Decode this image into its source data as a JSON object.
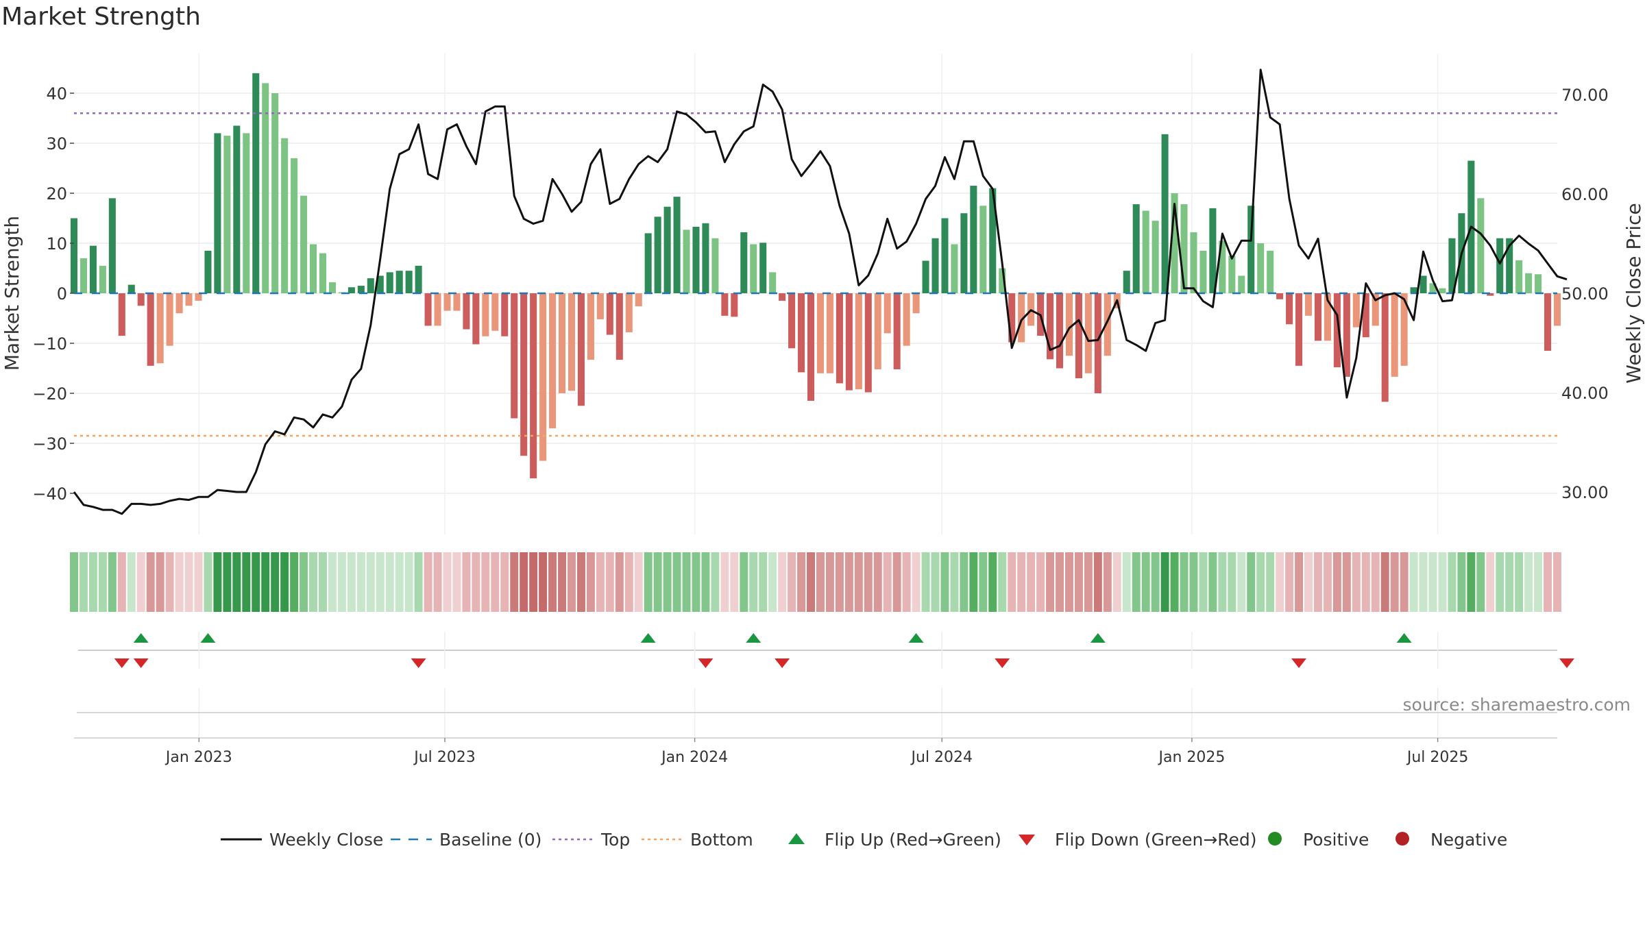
{
  "title": "Market Strength",
  "source": "source: sharemaestro.com",
  "colors": {
    "price_line": "#111111",
    "baseline": "#1f77b4",
    "top_line": "#9467bd",
    "bottom_line": "#f4a261",
    "pos_strong": "#2e8b57",
    "pos_weak": "#7dc383",
    "neg_strong": "#cd5c5c",
    "neg_weak": "#e9967a",
    "flip_up": "#1a9641",
    "flip_down": "#d62728",
    "positive_dot": "#228b22",
    "negative_dot": "#b22222"
  },
  "legend": [
    {
      "label": "Weekly Close",
      "icon": "line-icon"
    },
    {
      "label": "Baseline (0)",
      "icon": "dash-icon"
    },
    {
      "label": "Top",
      "icon": "dotted-line-icon"
    },
    {
      "label": "Bottom",
      "icon": "dotted-line-icon"
    },
    {
      "label": "Flip Up (Red→Green)",
      "icon": "triangle-up-icon"
    },
    {
      "label": "Flip Down (Green→Red)",
      "icon": "triangle-down-icon"
    },
    {
      "label": "Positive",
      "icon": "circle-icon"
    },
    {
      "label": "Negative",
      "icon": "circle-icon"
    }
  ],
  "chart_data": {
    "type": "bar+line",
    "title": "Market Strength",
    "ylabel_left": "Market Strength",
    "ylabel_right": "Weekly Close Price",
    "ylim_left": [
      -48,
      48
    ],
    "ylim_right": [
      26.0,
      74.0
    ],
    "yticks_left": [
      "40",
      "30",
      "20",
      "10",
      "0",
      "−10",
      "−20",
      "−30",
      "−40"
    ],
    "yticks_left_values": [
      40,
      30,
      20,
      10,
      0,
      -10,
      -20,
      -30,
      -40
    ],
    "yticks_right": [
      "70.00",
      "60.00",
      "50.00",
      "40.00",
      "30.00"
    ],
    "yticks_right_values": [
      70,
      60,
      50,
      40,
      30
    ],
    "x_start": "2022-10-01",
    "x_end": "2025-09-27",
    "xtick_labels": [
      "Jan 2023",
      "Jul 2023",
      "Jan 2024",
      "Jul 2024",
      "Jan 2025",
      "Jul 2025"
    ],
    "xtick_dates": [
      "2023-01-01",
      "2023-07-01",
      "2024-01-01",
      "2024-07-01",
      "2025-01-01",
      "2025-07-01"
    ],
    "top_level": 36,
    "bottom_level": -28.5,
    "baseline": 0,
    "strength": [
      15,
      7,
      9.5,
      5.5,
      19,
      -8.5,
      1.7,
      -2.5,
      -14.5,
      -14,
      -10.5,
      -4,
      -2.5,
      -1.5,
      8.5,
      32,
      31.5,
      33.5,
      32,
      44,
      42,
      40,
      31,
      27,
      19.5,
      9.8,
      8,
      2.2,
      0.2,
      1.2,
      1.5,
      3,
      3.5,
      4.2,
      4.5,
      4.5,
      5.5,
      -6.5,
      -6.5,
      -3.5,
      -3.5,
      -7.2,
      -10.2,
      -8.6,
      -7.5,
      -8.6,
      -25,
      -32.5,
      -37,
      -33.5,
      -27,
      -20,
      -19.5,
      -22.5,
      -13.3,
      -5.2,
      -8.3,
      -13.3,
      -7.8,
      -2.6,
      12,
      15.3,
      17.3,
      19.3,
      12.7,
      13.3,
      14,
      11,
      -4.5,
      -4.7,
      12.2,
      9.8,
      10.1,
      4.2,
      -1.5,
      -11,
      -15.8,
      -21.5,
      -16,
      -16,
      -18,
      -19.4,
      -19.2,
      -19.8,
      -15.2,
      -8,
      -15.2,
      -10.5,
      -4,
      6.5,
      11,
      15,
      9.8,
      16,
      21.5,
      17.5,
      21,
      5,
      -9.8,
      -9.8,
      -6.5,
      -8.5,
      -13.2,
      -15,
      -12.5,
      -17,
      -16,
      -20,
      -12.5,
      -3,
      4.5,
      17.8,
      16.5,
      14.5,
      31.8,
      20,
      17.8,
      12.2,
      8.5,
      17,
      10.5,
      7.5,
      3.5,
      17.5,
      10,
      8.5,
      -1.2,
      -6.2,
      -14.5,
      -4.5,
      -9.5,
      -9.5,
      -14.8,
      -16.7,
      -6.8,
      -8.8,
      -6.5,
      -21.7,
      -16.7,
      -14.5,
      1.2,
      3.5,
      2,
      1,
      11,
      16,
      26.5,
      19,
      -0.5,
      11,
      11,
      6.6,
      4,
      3.8,
      -11.5,
      -6.5
    ],
    "weekly_close": [
      30,
      28.7,
      28.5,
      28.2,
      28.2,
      27.8,
      28.8,
      28.8,
      28.7,
      28.8,
      29.1,
      29.3,
      29.2,
      29.5,
      29.5,
      30.2,
      30.1,
      30,
      30,
      32,
      34.8,
      36.1,
      35.8,
      37.5,
      37.3,
      36.5,
      37.8,
      37.5,
      38.6,
      41.3,
      42.4,
      46.8,
      53.5,
      60.5,
      64,
      64.5,
      67,
      62,
      61.5,
      66.5,
      67,
      64.8,
      63,
      68.3,
      68.8,
      68.8,
      59.8,
      57.5,
      57,
      57.3,
      61.5,
      60,
      58.2,
      59.2,
      63,
      64.5,
      59,
      59.5,
      61.5,
      63,
      63.8,
      63.2,
      64.5,
      68.3,
      68,
      67.2,
      66.2,
      66.3,
      63.2,
      65,
      66.3,
      66.8,
      71,
      70.3,
      68.5,
      63.5,
      61.8,
      63,
      64.3,
      62.8,
      58.8,
      56,
      50.8,
      51.8,
      54,
      57.5,
      54.5,
      55.2,
      57,
      59.5,
      60.8,
      63.7,
      61.5,
      65.3,
      65.3,
      61.8,
      60.5,
      53,
      44.5,
      47.3,
      48.3,
      47.8,
      44.3,
      44.7,
      46.5,
      47.3,
      45.2,
      45.3,
      47.2,
      49.3,
      45.3,
      44.8,
      44.2,
      47,
      47.3,
      59,
      50.5,
      50.5,
      49.2,
      48.6,
      56,
      53.5,
      55.3,
      55.3,
      72.5,
      67.7,
      67,
      59.5,
      54.8,
      53.5,
      55.5,
      49.3,
      47.8,
      39.5,
      43.5,
      51,
      49.3,
      49.8,
      50,
      49.4,
      47.3,
      54.2,
      51.3,
      49.2,
      49.3,
      54,
      56.7,
      56,
      54.8,
      53,
      54.8,
      55.8,
      55,
      54.3,
      53,
      51.7,
      51.4
    ],
    "flip_up_dates": [
      "2022-11-19",
      "2023-01-07",
      "2023-11-25",
      "2024-02-10",
      "2024-06-08",
      "2024-10-19",
      "2025-05-31"
    ],
    "flip_down_dates": [
      "2022-11-05",
      "2022-11-19",
      "2023-06-10",
      "2024-01-06",
      "2024-03-02",
      "2024-08-10",
      "2025-03-15",
      "2025-09-27"
    ]
  }
}
